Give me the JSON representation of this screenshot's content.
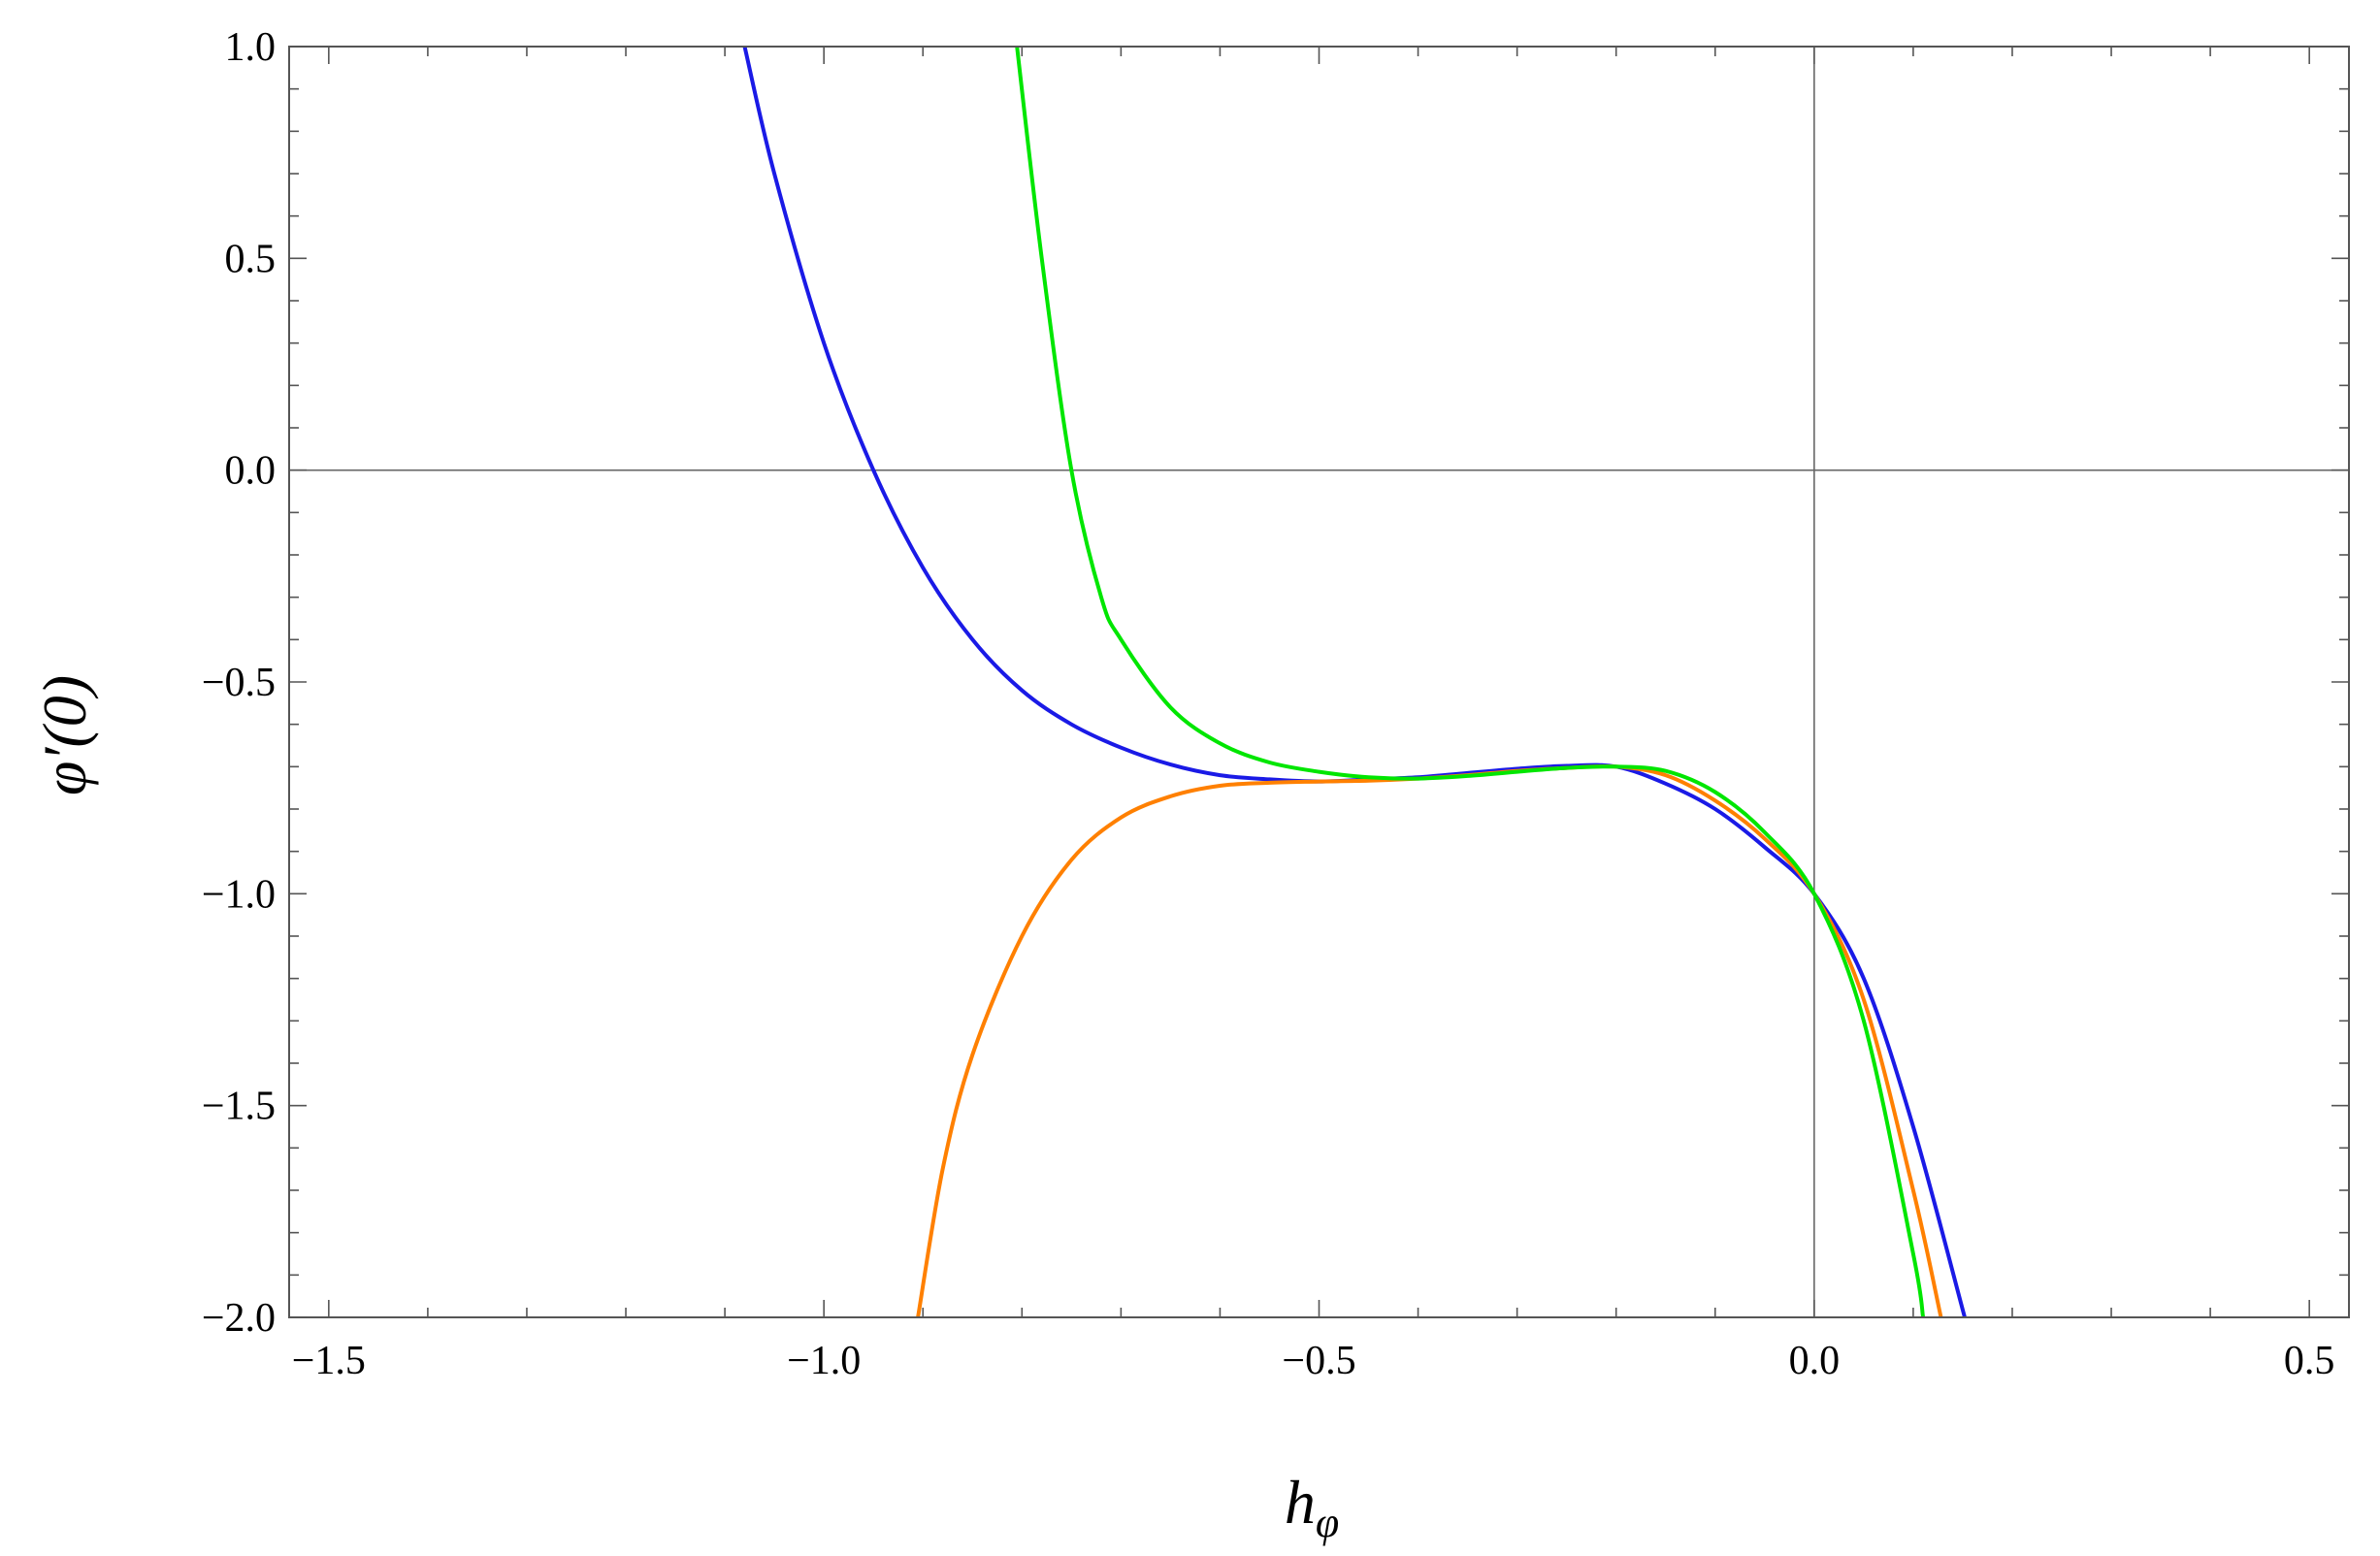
{
  "chart_data": {
    "type": "line",
    "title": "",
    "xlabel": "h",
    "xlabel_sub": "φ",
    "ylabel": "φ′(0)",
    "xlim": [
      -1.54,
      0.54
    ],
    "ylim": [
      -2.0,
      1.0
    ],
    "x_ticks": [
      -1.5,
      -1.0,
      -0.5,
      0.0,
      0.5
    ],
    "x_tick_labels": [
      "−1.5",
      "−1.0",
      "−0.5",
      "0.0",
      "0.5"
    ],
    "y_ticks": [
      -2.0,
      -1.5,
      -1.0,
      -0.5,
      0.0,
      0.5,
      1.0
    ],
    "y_tick_labels": [
      "−2.0",
      "−1.5",
      "−1.0",
      "−0.5",
      "0.0",
      "0.5",
      "1.0"
    ],
    "grid": false,
    "zero_lines": true,
    "series": [
      {
        "color": "#1a1ae6",
        "x": [
          -1.08,
          -1.05,
          -1.0,
          -0.95,
          -0.9,
          -0.85,
          -0.8,
          -0.75,
          -0.7,
          -0.65,
          -0.6,
          -0.55,
          -0.5,
          -0.45,
          -0.4,
          -0.35,
          -0.3,
          -0.25,
          -0.2,
          -0.15,
          -0.1,
          -0.05,
          0.0,
          0.05,
          0.1,
          0.152
        ],
        "y": [
          1.0,
          0.7,
          0.3,
          0.0,
          -0.23,
          -0.4,
          -0.52,
          -0.6,
          -0.655,
          -0.695,
          -0.72,
          -0.73,
          -0.735,
          -0.73,
          -0.725,
          -0.715,
          -0.705,
          -0.698,
          -0.7,
          -0.74,
          -0.8,
          -0.89,
          -1.0,
          -1.2,
          -1.55,
          -2.0
        ]
      },
      {
        "color": "#ff8000",
        "x": [
          -0.905,
          -0.88,
          -0.85,
          -0.8,
          -0.75,
          -0.7,
          -0.65,
          -0.6,
          -0.55,
          -0.5,
          -0.45,
          -0.4,
          -0.35,
          -0.3,
          -0.25,
          -0.2,
          -0.15,
          -0.1,
          -0.05,
          0.0,
          0.05,
          0.1,
          0.128
        ],
        "y": [
          -2.0,
          -1.65,
          -1.38,
          -1.1,
          -0.92,
          -0.82,
          -0.77,
          -0.745,
          -0.738,
          -0.735,
          -0.733,
          -0.728,
          -0.72,
          -0.71,
          -0.703,
          -0.7,
          -0.72,
          -0.78,
          -0.87,
          -1.0,
          -1.25,
          -1.7,
          -2.0
        ]
      },
      {
        "color": "#00e600",
        "x": [
          -0.805,
          -0.78,
          -0.75,
          -0.72,
          -0.7,
          -0.65,
          -0.6,
          -0.55,
          -0.5,
          -0.45,
          -0.4,
          -0.35,
          -0.3,
          -0.25,
          -0.2,
          -0.15,
          -0.1,
          -0.05,
          0.0,
          0.05,
          0.1,
          0.11
        ],
        "y": [
          1.0,
          0.5,
          0.0,
          -0.3,
          -0.4,
          -0.56,
          -0.645,
          -0.69,
          -0.712,
          -0.725,
          -0.728,
          -0.722,
          -0.712,
          -0.703,
          -0.7,
          -0.71,
          -0.76,
          -0.855,
          -1.0,
          -1.3,
          -1.85,
          -2.0
        ]
      }
    ]
  }
}
